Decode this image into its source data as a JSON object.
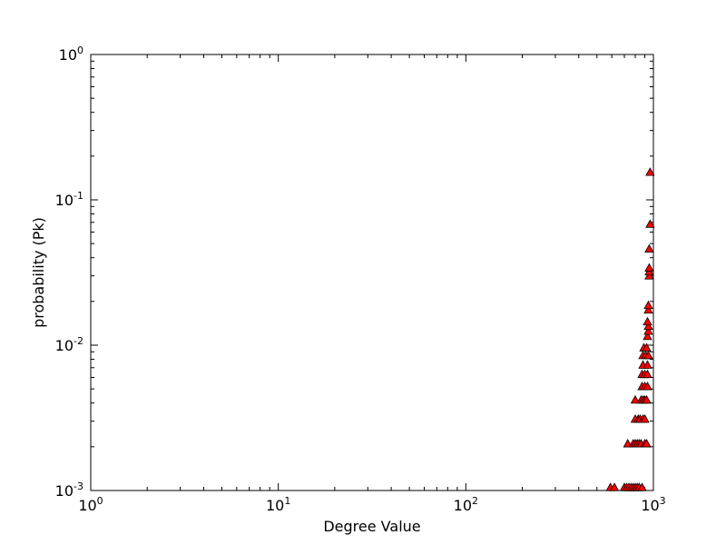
{
  "chart_data": {
    "type": "scatter",
    "title": "",
    "xlabel": "Degree Value",
    "ylabel": "probability (Pk)",
    "xscale": "log",
    "yscale": "log",
    "xlim": [
      1,
      1000
    ],
    "ylim": [
      0.001,
      1
    ],
    "x_ticks": [
      {
        "value": 1,
        "base": "10",
        "exp": "0"
      },
      {
        "value": 10,
        "base": "10",
        "exp": "1"
      },
      {
        "value": 100,
        "base": "10",
        "exp": "2"
      },
      {
        "value": 1000,
        "base": "10",
        "exp": "3"
      }
    ],
    "y_ticks": [
      {
        "value": 0.001,
        "base": "10",
        "exp": "-3"
      },
      {
        "value": 0.01,
        "base": "10",
        "exp": "-2"
      },
      {
        "value": 0.1,
        "base": "10",
        "exp": "-1"
      },
      {
        "value": 1,
        "base": "10",
        "exp": "0"
      }
    ],
    "marker": "triangle",
    "marker_color": "#ff0000",
    "marker_edge_color": "#000000",
    "grid": false,
    "points": [
      {
        "x": 590,
        "y": 0.00105
      },
      {
        "x": 620,
        "y": 0.00105
      },
      {
        "x": 700,
        "y": 0.00105
      },
      {
        "x": 720,
        "y": 0.00105
      },
      {
        "x": 740,
        "y": 0.00105
      },
      {
        "x": 760,
        "y": 0.00105
      },
      {
        "x": 780,
        "y": 0.00105
      },
      {
        "x": 800,
        "y": 0.00105
      },
      {
        "x": 820,
        "y": 0.00105
      },
      {
        "x": 840,
        "y": 0.00105
      },
      {
        "x": 870,
        "y": 0.00105
      },
      {
        "x": 730,
        "y": 0.0021
      },
      {
        "x": 780,
        "y": 0.0021
      },
      {
        "x": 800,
        "y": 0.0021
      },
      {
        "x": 820,
        "y": 0.0021
      },
      {
        "x": 840,
        "y": 0.0021
      },
      {
        "x": 860,
        "y": 0.0021
      },
      {
        "x": 900,
        "y": 0.0021
      },
      {
        "x": 920,
        "y": 0.0021
      },
      {
        "x": 800,
        "y": 0.0031
      },
      {
        "x": 830,
        "y": 0.0031
      },
      {
        "x": 850,
        "y": 0.0031
      },
      {
        "x": 880,
        "y": 0.0031
      },
      {
        "x": 900,
        "y": 0.0031
      },
      {
        "x": 800,
        "y": 0.0042
      },
      {
        "x": 860,
        "y": 0.0042
      },
      {
        "x": 880,
        "y": 0.0042
      },
      {
        "x": 900,
        "y": 0.0042
      },
      {
        "x": 920,
        "y": 0.0042
      },
      {
        "x": 870,
        "y": 0.0052
      },
      {
        "x": 900,
        "y": 0.0052
      },
      {
        "x": 930,
        "y": 0.0052
      },
      {
        "x": 870,
        "y": 0.0063
      },
      {
        "x": 900,
        "y": 0.0063
      },
      {
        "x": 930,
        "y": 0.0063
      },
      {
        "x": 880,
        "y": 0.0073
      },
      {
        "x": 930,
        "y": 0.0073
      },
      {
        "x": 880,
        "y": 0.0085
      },
      {
        "x": 910,
        "y": 0.0085
      },
      {
        "x": 940,
        "y": 0.0085
      },
      {
        "x": 890,
        "y": 0.0096
      },
      {
        "x": 920,
        "y": 0.0096
      },
      {
        "x": 930,
        "y": 0.0115
      },
      {
        "x": 940,
        "y": 0.0125
      },
      {
        "x": 940,
        "y": 0.0135
      },
      {
        "x": 930,
        "y": 0.0145
      },
      {
        "x": 940,
        "y": 0.0175
      },
      {
        "x": 940,
        "y": 0.0188
      },
      {
        "x": 950,
        "y": 0.03
      },
      {
        "x": 950,
        "y": 0.032
      },
      {
        "x": 950,
        "y": 0.034
      },
      {
        "x": 950,
        "y": 0.046
      },
      {
        "x": 960,
        "y": 0.068
      },
      {
        "x": 960,
        "y": 0.155
      }
    ]
  }
}
